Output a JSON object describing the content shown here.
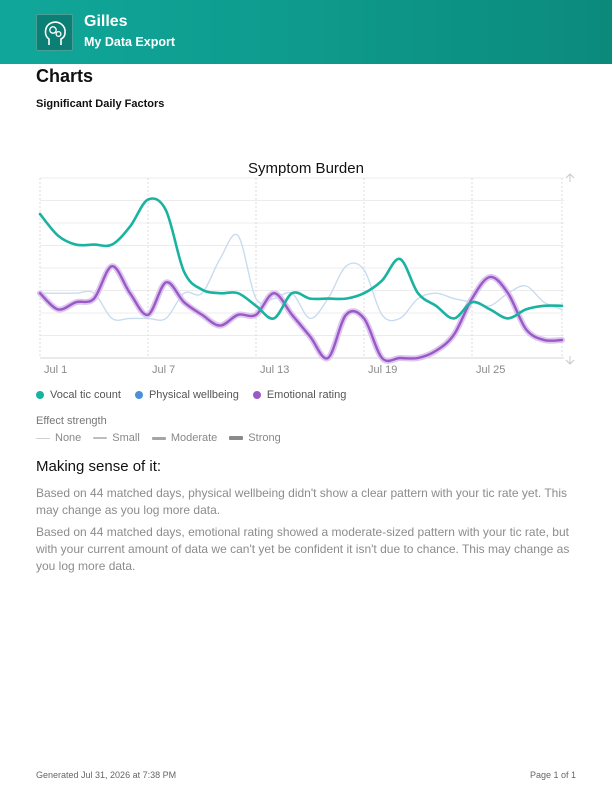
{
  "header": {
    "app_name": "Gilles",
    "subtitle": "My Data Export",
    "logo_icon": "head-gears-icon"
  },
  "page": {
    "title": "Charts",
    "section_title": "Significant Daily Factors"
  },
  "chart_data": {
    "type": "line",
    "title": "Symptom Burden",
    "x_ticks": [
      "Jul 1",
      "Jul 7",
      "Jul 13",
      "Jul 19",
      "Jul 25"
    ],
    "x": [
      "Jul 1",
      "Jul 2",
      "Jul 3",
      "Jul 4",
      "Jul 5",
      "Jul 6",
      "Jul 7",
      "Jul 8",
      "Jul 9",
      "Jul 10",
      "Jul 11",
      "Jul 12",
      "Jul 13",
      "Jul 14",
      "Jul 15",
      "Jul 16",
      "Jul 17",
      "Jul 18",
      "Jul 19",
      "Jul 20",
      "Jul 21",
      "Jul 22",
      "Jul 23",
      "Jul 24",
      "Jul 25",
      "Jul 26",
      "Jul 27",
      "Jul 28",
      "Jul 29",
      "Jul 30"
    ],
    "y_range": [
      0,
      1
    ],
    "y_ticks_shown": false,
    "grid": true,
    "series": [
      {
        "name": "Vocal tic count",
        "color": "#1ab2a0",
        "values": [
          0.8,
          0.68,
          0.63,
          0.63,
          0.63,
          0.73,
          0.88,
          0.82,
          0.48,
          0.38,
          0.36,
          0.36,
          0.29,
          0.22,
          0.36,
          0.33,
          0.33,
          0.33,
          0.36,
          0.43,
          0.55,
          0.36,
          0.29,
          0.22,
          0.31,
          0.27,
          0.22,
          0.27,
          0.29,
          0.29
        ]
      },
      {
        "name": "Physical wellbeing",
        "color": "#4a90d9",
        "values": [
          0.36,
          0.36,
          0.36,
          0.36,
          0.22,
          0.22,
          0.22,
          0.22,
          0.36,
          0.36,
          0.55,
          0.68,
          0.33,
          0.33,
          0.36,
          0.22,
          0.33,
          0.51,
          0.49,
          0.24,
          0.22,
          0.33,
          0.36,
          0.33,
          0.31,
          0.29,
          0.36,
          0.4,
          0.31,
          0.27
        ]
      },
      {
        "name": "Emotional rating",
        "color": "#9b59c8",
        "values": [
          0.36,
          0.27,
          0.31,
          0.33,
          0.51,
          0.36,
          0.24,
          0.42,
          0.31,
          0.24,
          0.18,
          0.24,
          0.24,
          0.36,
          0.24,
          0.12,
          0.0,
          0.24,
          0.22,
          0.0,
          0.0,
          0.0,
          0.04,
          0.13,
          0.33,
          0.45,
          0.36,
          0.16,
          0.1,
          0.1
        ]
      }
    ]
  },
  "legend": {
    "items": [
      {
        "label": "Vocal tic count",
        "color": "#1ab2a0"
      },
      {
        "label": "Physical wellbeing",
        "color": "#4a90d9"
      },
      {
        "label": "Emotional rating",
        "color": "#9b59c8"
      }
    ]
  },
  "effect_strength": {
    "title": "Effect strength",
    "items": [
      {
        "label": "None",
        "level": 0
      },
      {
        "label": "Small",
        "level": 1
      },
      {
        "label": "Moderate",
        "level": 2
      },
      {
        "label": "Strong",
        "level": 3
      }
    ]
  },
  "sense": {
    "title": "Making sense of it:",
    "paragraph1": "Based on 44 matched days, physical wellbeing didn't show a clear pattern with your tic rate yet. This may change as you log more data.",
    "paragraph2": "Based on 44 matched days, emotional rating showed a moderate-sized pattern with your tic rate, but with your current amount of data we can't yet be confident it isn't due to chance. This may change as you log more data."
  },
  "footer": {
    "generated": "Generated Jul 31, 2026 at 7:38 PM",
    "page": "Page 1 of 1"
  }
}
